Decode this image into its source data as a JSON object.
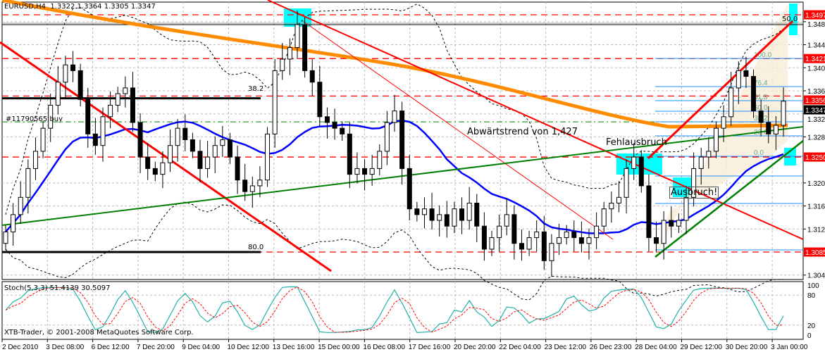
{
  "header": {
    "symbol": "EURUSD,H4",
    "ohlc": "1.3322 1.3364 1.3305 1.3347"
  },
  "indicator": {
    "label": "Stoch(5,3,3) 51.4139 30.5097"
  },
  "footer": {
    "copyright": "XTB-Trader, © 2001-2008 MetaQuotes Software Corp."
  },
  "annotations": {
    "trend": "Abwärtstrend von 1,427",
    "false_breakout": "Fehlausbruch",
    "breakout": "Ausbruch!",
    "order": "#11790565 buy",
    "fib_left_top": "38.2",
    "fib_left_bottom": "80.0",
    "fib_top": "50.0"
  },
  "colors": {
    "price_label": "#ff0000",
    "orange_ma": "#ff8c00",
    "blue_ma": "#0000ff",
    "trend_red": "#ff0000",
    "trend_green": "#008000",
    "zone": "#00ffff",
    "fib": "#1e90ff",
    "stoch_main": "#20b2aa",
    "stoch_signal": "#ff0000"
  },
  "chart_data": {
    "type": "candlestick",
    "title": "EURUSD,H4",
    "ylim": [
      1.3025,
      1.3525
    ],
    "grid": true,
    "closes": [
      1.312,
      1.315,
      1.318,
      1.323,
      1.326,
      1.33,
      1.334,
      1.338,
      1.341,
      1.34,
      1.335,
      1.329,
      1.327,
      1.332,
      1.334,
      1.336,
      1.337,
      1.331,
      1.325,
      1.323,
      1.322,
      1.324,
      1.327,
      1.33,
      1.328,
      1.326,
      1.323,
      1.325,
      1.327,
      1.328,
      1.325,
      1.321,
      1.319,
      1.32,
      1.321,
      1.329,
      1.34,
      1.342,
      1.344,
      1.348,
      1.34,
      1.338,
      1.332,
      1.331,
      1.33,
      1.329,
      1.322,
      1.323,
      1.322,
      1.323,
      1.326,
      1.331,
      1.333,
      1.323,
      1.316,
      1.315,
      1.316,
      1.314,
      1.315,
      1.313,
      1.316,
      1.314,
      1.317,
      1.313,
      1.309,
      1.311,
      1.313,
      1.315,
      1.31,
      1.309,
      1.311,
      1.312,
      1.307,
      1.31,
      1.311,
      1.312,
      1.311,
      1.31,
      1.311,
      1.313,
      1.316,
      1.317,
      1.318,
      1.323,
      1.325,
      1.32,
      1.311,
      1.31,
      1.314,
      1.313,
      1.314,
      1.318,
      1.323,
      1.325,
      1.326,
      1.33,
      1.332,
      1.337,
      1.34,
      1.339,
      1.333,
      1.331,
      1.329,
      1.3305,
      1.3347
    ],
    "x_ticks": [
      "2 Dec 2010",
      "3 Dec 08:00",
      "6 Dec 12:00",
      "7 Dec 20:00",
      "9 Dec 04:00",
      "10 Dec 12:00",
      "13 Dec 16:00",
      "15 Dec 00:00",
      "16 Dec 08:00",
      "17 Dec 16:00",
      "20 Dec 20:00",
      "22 Dec 04:00",
      "23 Dec 12:00",
      "26 Dec 23:00",
      "28 Dec 04:00",
      "29 Dec 12:00",
      "30 Dec 20:00",
      "3 Jan 00:00"
    ],
    "y_ticks": [
      "1.3485",
      "1.3445",
      "1.3405",
      "1.3365",
      "1.3325",
      "1.3285",
      "1.3205",
      "1.3165",
      "1.3125",
      "1.3045"
    ],
    "price_labels": [
      {
        "value": "1.3497",
        "kind": "red"
      },
      {
        "value": "1.3421",
        "kind": "red"
      },
      {
        "value": "1.3356",
        "kind": "red"
      },
      {
        "value": "1.3347",
        "kind": "current"
      },
      {
        "value": "1.3250",
        "kind": "red"
      },
      {
        "value": "1.3085",
        "kind": "red"
      }
    ],
    "fib_levels": [
      "0.0",
      "23.6",
      "38.2",
      "50.0",
      "61.8",
      "76.4",
      "100.0"
    ],
    "stoch_ticks": [
      "100",
      "80",
      "20",
      "0"
    ]
  }
}
